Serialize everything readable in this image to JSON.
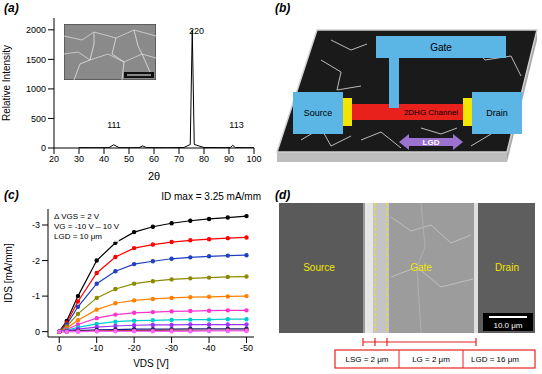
{
  "chart_data": [
    {
      "panel": "(a)",
      "type": "line",
      "x_label": "2θ",
      "y_label": "Relative Intensity",
      "x": [
        30,
        40,
        42,
        43.9,
        46,
        50,
        54,
        55.5,
        57,
        65,
        72,
        74.5,
        75.3,
        76.1,
        80,
        88,
        90.5,
        91.5,
        92.5,
        96,
        100
      ],
      "values": [
        6,
        5,
        6,
        55,
        6,
        5,
        6,
        35,
        6,
        5,
        8,
        60,
        2000,
        60,
        8,
        6,
        8,
        45,
        8,
        6,
        5
      ],
      "color": "#000000",
      "xlim": [
        20,
        100
      ],
      "xticks": [
        20,
        30,
        40,
        50,
        60,
        70,
        80,
        90,
        100
      ],
      "ylim": [
        0,
        2200
      ],
      "yticks": [
        0,
        500,
        1000,
        1500,
        2000
      ],
      "grid": false,
      "annotations": [
        {
          "text": "111",
          "x": 44,
          "y": 250
        },
        {
          "text": "220",
          "x": 77,
          "y": 1850
        },
        {
          "text": "113",
          "x": 93,
          "y": 250
        }
      ]
    },
    {
      "panel": "(c)",
      "type": "line",
      "title": "ID max = 3.25 mA/mm",
      "x_label": "VDS [V]",
      "y_label": "IDS [mA/mm]",
      "annotations": [
        "Δ VGS = 2 V",
        "VG = -10 V – 10 V",
        "LGD = 10 μm"
      ],
      "x": [
        0,
        -2,
        -5,
        -10,
        -15,
        -20,
        -25,
        -30,
        -35,
        -40,
        -45,
        -50
      ],
      "series": [
        {
          "color": "#000000",
          "values": [
            0,
            -0.3,
            -1.0,
            -2.0,
            -2.5,
            -2.8,
            -2.95,
            -3.05,
            -3.12,
            -3.17,
            -3.21,
            -3.25
          ]
        },
        {
          "color": "#ff0000",
          "values": [
            0,
            -0.25,
            -0.85,
            -1.65,
            -2.1,
            -2.35,
            -2.45,
            -2.52,
            -2.57,
            -2.6,
            -2.63,
            -2.65
          ]
        },
        {
          "color": "#1f3fbf",
          "values": [
            0,
            -0.2,
            -0.7,
            -1.35,
            -1.7,
            -1.9,
            -1.98,
            -2.05,
            -2.09,
            -2.12,
            -2.14,
            -2.15
          ]
        },
        {
          "color": "#8a8a00",
          "values": [
            0,
            -0.15,
            -0.5,
            -0.95,
            -1.2,
            -1.35,
            -1.42,
            -1.47,
            -1.5,
            -1.52,
            -1.54,
            -1.55
          ]
        },
        {
          "color": "#ff8000",
          "values": [
            0,
            -0.1,
            -0.32,
            -0.62,
            -0.8,
            -0.88,
            -0.92,
            -0.95,
            -0.97,
            -0.98,
            -0.99,
            -1.0
          ]
        },
        {
          "color": "#ff33cc",
          "values": [
            0,
            -0.06,
            -0.2,
            -0.38,
            -0.48,
            -0.53,
            -0.55,
            -0.57,
            -0.58,
            -0.59,
            -0.6,
            -0.6
          ]
        },
        {
          "color": "#00cccc",
          "values": [
            0,
            -0.04,
            -0.12,
            -0.22,
            -0.28,
            -0.31,
            -0.32,
            -0.33,
            -0.34,
            -0.34,
            -0.35,
            -0.35
          ]
        },
        {
          "color": "#9933ff",
          "values": [
            0,
            -0.02,
            -0.07,
            -0.13,
            -0.16,
            -0.18,
            -0.19,
            -0.19,
            -0.2,
            -0.2,
            -0.2,
            -0.2
          ]
        },
        {
          "color": "#1a1a80",
          "values": [
            0,
            -0.01,
            -0.03,
            -0.05,
            -0.06,
            -0.07,
            -0.07,
            -0.07,
            -0.08,
            -0.08,
            -0.08,
            -0.08
          ]
        },
        {
          "color": "#993333",
          "values": [
            0,
            0,
            -0.01,
            -0.02,
            -0.03,
            -0.03,
            -0.03,
            -0.04,
            -0.04,
            -0.04,
            -0.04,
            -0.04
          ]
        },
        {
          "color": "#ff66ff",
          "values": [
            0,
            0,
            0,
            -0.01,
            -0.01,
            -0.01,
            -0.01,
            -0.01,
            -0.01,
            -0.02,
            -0.02,
            -0.02
          ]
        }
      ],
      "marker": "circle",
      "xlim": [
        3,
        -52
      ],
      "xticks": [
        0,
        -10,
        -20,
        -30,
        -40,
        -50
      ],
      "ylim": [
        0.15,
        -3.45
      ],
      "yticks": [
        0,
        -1,
        -2,
        -3
      ],
      "grid": false
    }
  ],
  "schematic": {
    "panel": "(b)",
    "gate": "Gate",
    "source": "Source",
    "drain": "Drain",
    "channel": "2DHG Channel",
    "length": "LGD"
  },
  "sem": {
    "panel": "(d)",
    "source": "Source",
    "gate": "Gate",
    "drain": "Drain",
    "scale_bar": "10.0 μm",
    "dimensions": [
      "LSG = 2 μm",
      "LG = 2 μm",
      "LGD = 16 μm"
    ]
  }
}
